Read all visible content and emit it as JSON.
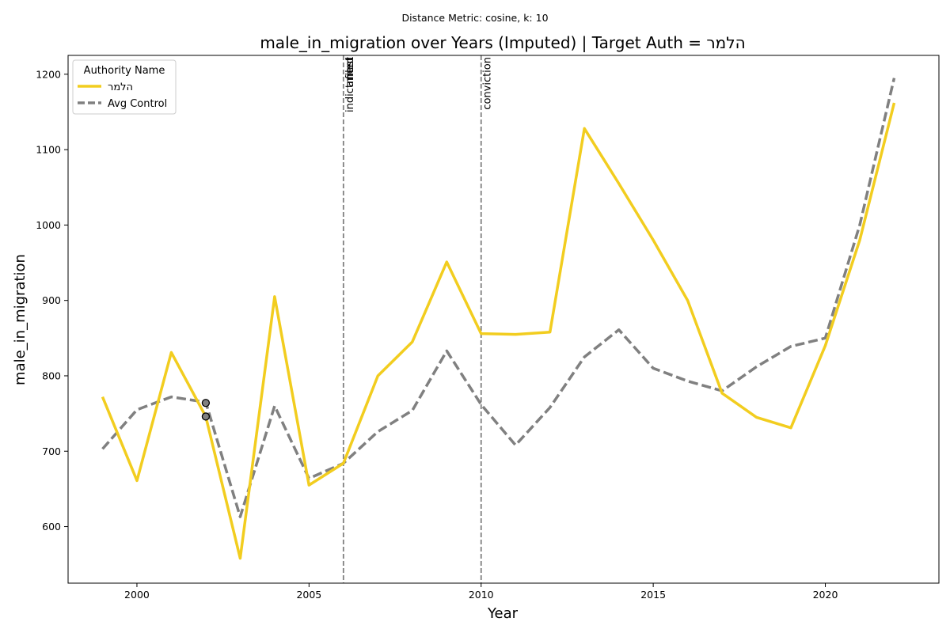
{
  "suptitle": "Distance Metric: cosine, k: 10",
  "chart_data": {
    "type": "line",
    "title": "male_in_migration over Years (Imputed) | Target Auth = הלמר",
    "xlabel": "Year",
    "ylabel": "male_in_migration",
    "xlim": [
      1998,
      2023.3
    ],
    "ylim": [
      525,
      1225
    ],
    "xticks": [
      2000,
      2005,
      2010,
      2015,
      2020
    ],
    "yticks": [
      600,
      700,
      800,
      900,
      1000,
      1100,
      1200
    ],
    "legend": {
      "title": "Authority Name",
      "position": "top-left"
    },
    "series": [
      {
        "name": "הלמר",
        "color": "#f2cd1f",
        "style": "solid",
        "x": [
          1999,
          2000,
          2001,
          2002,
          2003,
          2004,
          2005,
          2006,
          2007,
          2008,
          2009,
          2010,
          2011,
          2012,
          2013,
          2014,
          2015,
          2016,
          2017,
          2018,
          2019,
          2020,
          2021,
          2022
        ],
        "values": [
          772,
          661,
          831,
          746,
          558,
          905,
          655,
          684,
          800,
          845,
          951,
          856,
          855,
          858,
          1128,
          1055,
          980,
          900,
          777,
          745,
          731,
          840,
          980,
          1162
        ]
      },
      {
        "name": "Avg Control",
        "color": "#808080",
        "style": "dashed",
        "x": [
          1999,
          2000,
          2001,
          2002,
          2003,
          2004,
          2005,
          2006,
          2007,
          2008,
          2009,
          2010,
          2011,
          2012,
          2013,
          2014,
          2015,
          2016,
          2017,
          2018,
          2019,
          2020,
          2021,
          2022
        ],
        "values": [
          703,
          755,
          772,
          765,
          613,
          760,
          664,
          684,
          726,
          754,
          833,
          762,
          708,
          758,
          825,
          861,
          810,
          793,
          780,
          812,
          839,
          850,
          1000,
          1195
        ]
      }
    ],
    "markers": [
      {
        "x": 2002,
        "y": 764
      },
      {
        "x": 2002,
        "y": 746
      }
    ],
    "vlines": [
      {
        "x": 2006,
        "labels": [
          "indictment",
          "filed",
          "arrest"
        ]
      },
      {
        "x": 2010,
        "labels": [
          "conviction"
        ]
      }
    ]
  }
}
